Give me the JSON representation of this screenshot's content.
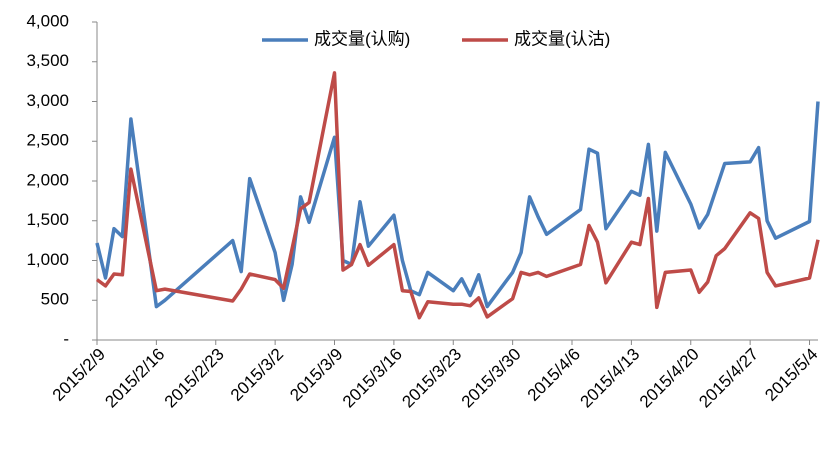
{
  "chart_data": {
    "type": "line",
    "x": [
      "2015/2/9",
      "2015/2/10",
      "2015/2/11",
      "2015/2/12",
      "2015/2/13",
      "2015/2/16",
      "2015/2/17",
      "2015/2/25",
      "2015/2/26",
      "2015/2/27",
      "2015/3/2",
      "2015/3/3",
      "2015/3/4",
      "2015/3/5",
      "2015/3/6",
      "2015/3/9",
      "2015/3/10",
      "2015/3/11",
      "2015/3/12",
      "2015/3/13",
      "2015/3/16",
      "2015/3/17",
      "2015/3/18",
      "2015/3/19",
      "2015/3/20",
      "2015/3/23",
      "2015/3/24",
      "2015/3/25",
      "2015/3/26",
      "2015/3/27",
      "2015/3/30",
      "2015/3/31",
      "2015/4/1",
      "2015/4/2",
      "2015/4/3",
      "2015/4/7",
      "2015/4/8",
      "2015/4/9",
      "2015/4/10",
      "2015/4/13",
      "2015/4/14",
      "2015/4/15",
      "2015/4/16",
      "2015/4/17",
      "2015/4/20",
      "2015/4/21",
      "2015/4/22",
      "2015/4/23",
      "2015/4/24",
      "2015/4/27",
      "2015/4/28",
      "2015/4/29",
      "2015/4/30",
      "2015/5/4",
      "2015/5/5"
    ],
    "series": [
      {
        "name": "成交量(认购)",
        "color": "#4a7ebb",
        "values": [
          1220,
          780,
          1400,
          1300,
          2780,
          420,
          500,
          1250,
          860,
          2030,
          1100,
          500,
          950,
          1800,
          1480,
          2550,
          1000,
          950,
          1740,
          1180,
          1570,
          1000,
          620,
          570,
          850,
          620,
          770,
          560,
          820,
          420,
          850,
          1100,
          1800,
          1550,
          1330,
          1640,
          2400,
          2350,
          1400,
          1870,
          1820,
          2460,
          1370,
          2360,
          1710,
          1410,
          1580,
          1900,
          2220,
          2240,
          2420,
          1500,
          1280,
          1490,
          3000
        ]
      },
      {
        "name": "成交量(认沽)",
        "color": "#be4b48",
        "values": [
          760,
          680,
          830,
          820,
          2150,
          620,
          640,
          490,
          640,
          830,
          760,
          650,
          1150,
          1650,
          1730,
          3360,
          880,
          950,
          1200,
          940,
          1200,
          620,
          610,
          280,
          480,
          450,
          450,
          430,
          530,
          290,
          520,
          850,
          820,
          850,
          800,
          950,
          1440,
          1230,
          720,
          1230,
          1200,
          1780,
          410,
          850,
          880,
          600,
          730,
          1060,
          1150,
          1600,
          1530,
          850,
          680,
          780,
          1260
        ]
      }
    ],
    "xlim": [
      "2015/2/9",
      "2015/5/5"
    ],
    "xticks": [
      "2015/2/9",
      "2015/2/16",
      "2015/2/23",
      "2015/3/2",
      "2015/3/9",
      "2015/3/16",
      "2015/3/23",
      "2015/3/30",
      "2015/4/6",
      "2015/4/13",
      "2015/4/20",
      "2015/4/27",
      "2015/5/4"
    ],
    "ylim": [
      0,
      4000
    ],
    "yticks": [
      {
        "value": 0,
        "label": "-"
      },
      500,
      {
        "value": 1000,
        "label": "1,000"
      },
      {
        "value": 1500,
        "label": "1,500"
      },
      {
        "value": 2000,
        "label": "2,000"
      },
      {
        "value": 2500,
        "label": "2,500"
      },
      {
        "value": 3000,
        "label": "3,000"
      },
      {
        "value": 3500,
        "label": "3,500"
      },
      {
        "value": 4000,
        "label": "4,000"
      }
    ],
    "legend": "top"
  }
}
